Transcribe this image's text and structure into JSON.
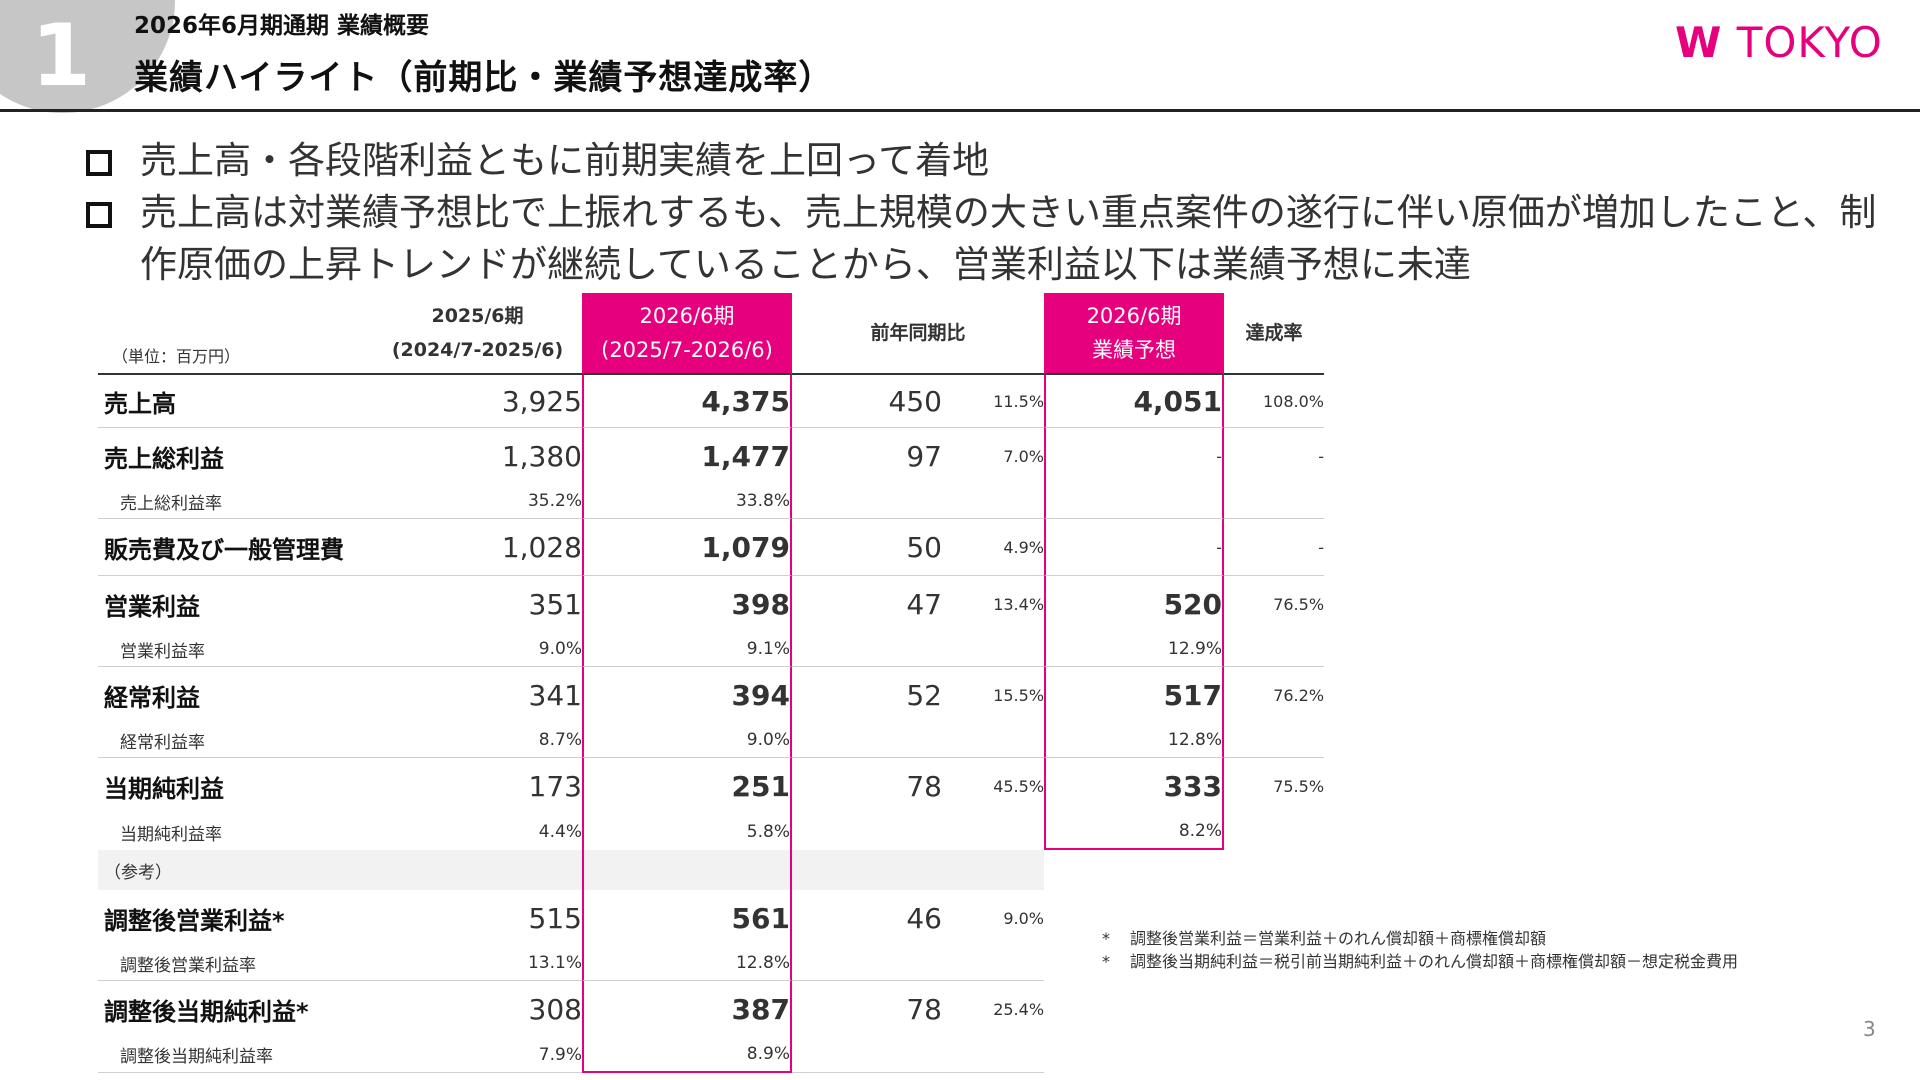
{
  "header": {
    "section_number": "1",
    "subtitle": "2026年6月期通期 業績概要",
    "title": "業績ハイライト（前期比・業績予想達成率）",
    "logo_w": "W",
    "logo_text": "TOKYO",
    "brand_color": "#e6007e"
  },
  "bullets": [
    "売上高・各段階利益ともに前期実績を上回って着地",
    "売上高は対業績予想比で上振れするも、売上規模の大きい重点案件の遂行に伴い原価が増加したこと、制作原価の上昇トレンドが継続していることから、営業利益以下は業績予想に未達"
  ],
  "table": {
    "unit": "（単位：百万円）",
    "col_prev": [
      "2025/6期",
      "(2024/7-2025/6)"
    ],
    "col_curr": [
      "2026/6期",
      "(2025/7-2026/6)"
    ],
    "col_yoy": "前年同期比",
    "col_fcst": [
      "2026/6期",
      "業績予想"
    ],
    "col_ach": "達成率",
    "reference_label": "（参考）",
    "rows": [
      {
        "label": "売上高",
        "prev": "3,925",
        "curr": "4,375",
        "diff": "450",
        "pct": "11.5%",
        "fcst": "4,051",
        "ach": "108.0%"
      },
      {
        "label": "売上総利益",
        "prev": "1,380",
        "curr": "1,477",
        "diff": "97",
        "pct": "7.0%",
        "fcst": "-",
        "ach": "-"
      },
      {
        "label": "売上総利益率",
        "prev": "35.2%",
        "curr": "33.8%",
        "fcst": ""
      },
      {
        "label": "販売費及び一般管理費",
        "prev": "1,028",
        "curr": "1,079",
        "diff": "50",
        "pct": "4.9%",
        "fcst": "-",
        "ach": "-"
      },
      {
        "label": "営業利益",
        "prev": "351",
        "curr": "398",
        "diff": "47",
        "pct": "13.4%",
        "fcst": "520",
        "ach": "76.5%"
      },
      {
        "label": "営業利益率",
        "prev": "9.0%",
        "curr": "9.1%",
        "fcst": "12.9%"
      },
      {
        "label": "経常利益",
        "prev": "341",
        "curr": "394",
        "diff": "52",
        "pct": "15.5%",
        "fcst": "517",
        "ach": "76.2%"
      },
      {
        "label": "経常利益率",
        "prev": "8.7%",
        "curr": "9.0%",
        "fcst": "12.8%"
      },
      {
        "label": "当期純利益",
        "prev": "173",
        "curr": "251",
        "diff": "78",
        "pct": "45.5%",
        "fcst": "333",
        "ach": "75.5%"
      },
      {
        "label": "当期純利益率",
        "prev": "4.4%",
        "curr": "5.8%",
        "fcst": "8.2%"
      },
      {
        "label": "調整後営業利益*",
        "prev": "515",
        "curr": "561",
        "diff": "46",
        "pct": "9.0%"
      },
      {
        "label": "調整後営業利益率",
        "prev": "13.1%",
        "curr": "12.8%"
      },
      {
        "label": "調整後当期純利益*",
        "prev": "308",
        "curr": "387",
        "diff": "78",
        "pct": "25.4%"
      },
      {
        "label": "調整後当期純利益率",
        "prev": "7.9%",
        "curr": "8.9%"
      }
    ]
  },
  "notes": [
    {
      "mark": "*",
      "text": "調整後営業利益＝営業利益＋のれん償却額＋商標権償却額"
    },
    {
      "mark": "*",
      "text": "調整後当期純利益＝税引前当期純利益＋のれん償却額＋商標権償却額－想定税金費用"
    }
  ],
  "page_number": "3"
}
